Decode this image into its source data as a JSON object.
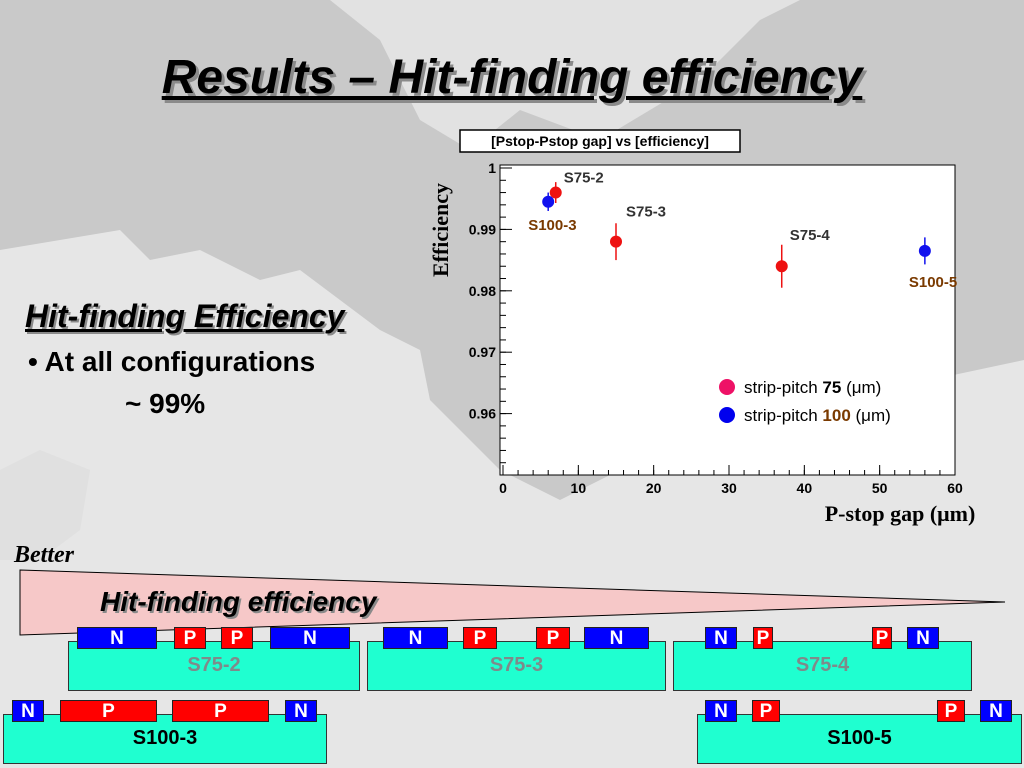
{
  "slide": {
    "title": "Results – Hit-finding efficiency",
    "section_title": "Hit-finding Efficiency",
    "bullet": "• At all configurations",
    "approx": "~ 99%",
    "better": "Better",
    "triangle_label": "Hit-finding efficiency"
  },
  "chart_data": {
    "type": "scatter",
    "title": "[Pstop-Pstop gap] vs [efficiency]",
    "xlabel": "P-stop gap (μm)",
    "ylabel": "Efficiency",
    "xlim": [
      0,
      60
    ],
    "ylim": [
      0.95,
      1.0
    ],
    "x_ticks": [
      "0",
      "10",
      "20",
      "30",
      "40",
      "50",
      "60"
    ],
    "y_ticks": [
      "0.96",
      "0.97",
      "0.98",
      "0.99",
      "1"
    ],
    "series": [
      {
        "name": "strip-pitch 75 (μm)",
        "color": "#ee1111",
        "points": [
          {
            "x": 7,
            "y": 0.996,
            "err": 0.0017,
            "label": "S75-2"
          },
          {
            "x": 15,
            "y": 0.988,
            "err": 0.003,
            "label": "S75-3"
          },
          {
            "x": 37,
            "y": 0.984,
            "err": 0.0035,
            "label": "S75-4"
          }
        ]
      },
      {
        "name": "strip-pitch 100 (μm)",
        "color": "#1111ee",
        "points": [
          {
            "x": 6,
            "y": 0.9945,
            "err": 0.0015,
            "label": "S100-3"
          },
          {
            "x": 56,
            "y": 0.9865,
            "err": 0.0022,
            "label": "S100-5"
          }
        ]
      }
    ],
    "legend": [
      {
        "prefix": "strip-pitch ",
        "value": "75",
        "suffix": " (μm)",
        "color": "#ee1166"
      },
      {
        "prefix": "strip-pitch ",
        "value": "100",
        "suffix": " (μm)",
        "color": "#0000ee"
      }
    ],
    "legend_position": "bottom-right",
    "grid": false
  },
  "sensors": {
    "s75_2": {
      "label": "S75-2",
      "strips": [
        "N",
        "P",
        "P",
        "N"
      ]
    },
    "s75_3": {
      "label": "S75-3",
      "strips": [
        "N",
        "P",
        "P",
        "N"
      ]
    },
    "s75_4": {
      "label": "S75-4",
      "strips": [
        "N",
        "P",
        "P",
        "N"
      ]
    },
    "s100_3": {
      "label": "S100-3",
      "strips": [
        "N",
        "P",
        "P",
        "N"
      ]
    },
    "s100_5": {
      "label": "S100-5",
      "strips": [
        "N",
        "P",
        "P",
        "N"
      ]
    }
  }
}
